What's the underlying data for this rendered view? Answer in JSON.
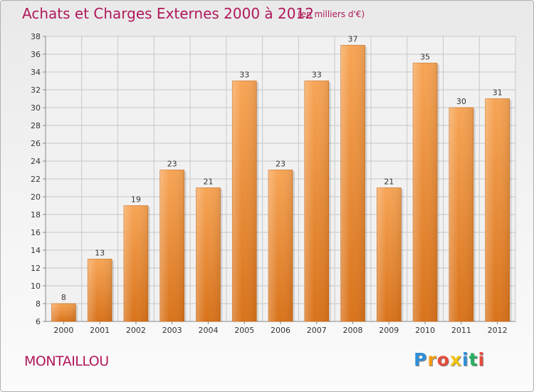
{
  "chart_data": {
    "type": "bar",
    "title": "Achats et Charges Externes 2000 à 2012",
    "subtitle": "(en milliers d'€)",
    "categories": [
      "2000",
      "2001",
      "2002",
      "2003",
      "2004",
      "2005",
      "2006",
      "2007",
      "2008",
      "2009",
      "2010",
      "2011",
      "2012"
    ],
    "values": [
      8,
      13,
      19,
      23,
      21,
      33,
      23,
      33,
      37,
      21,
      35,
      30,
      31
    ],
    "ylim": [
      6,
      38
    ],
    "yticks": [
      6,
      8,
      10,
      12,
      14,
      16,
      18,
      20,
      22,
      24,
      26,
      28,
      30,
      32,
      34,
      36,
      38
    ],
    "grid": true,
    "bar_color": "#f0913a",
    "xlabel": "",
    "ylabel": ""
  },
  "footer": {
    "town": "MONTAILLOU",
    "logo_letters": [
      "P",
      "r",
      "o",
      "x",
      "i",
      "t",
      "i"
    ],
    "logo_colors": [
      "#2f8fd8",
      "#f39c12",
      "#e74c3c",
      "#f1c40f",
      "#2f8fd8",
      "#27ae60",
      "#e74c3c"
    ]
  },
  "colors": {
    "title": "#b0185b",
    "bar": "#f0913a",
    "grid": "#c8c8c8"
  }
}
